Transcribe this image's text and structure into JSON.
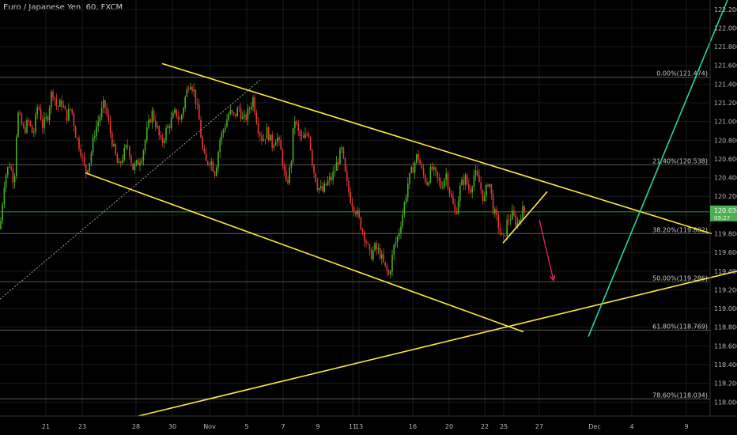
{
  "header": {
    "title": "Euro / Japanese Yen, 60, FXCM"
  },
  "price_badge": {
    "price": "120.034",
    "countdown": "09:27"
  },
  "colors": {
    "background": "#000000",
    "grid": "#1a1a1a",
    "candle_up": "#4caf1e",
    "candle_down": "#e53935",
    "channel": "#ffeb3b",
    "fib_line": "#5a5a5a",
    "current_price": "#4caf50",
    "trendline_teal": "#26d7a8",
    "arrow": "#e0245e",
    "dotted": "#9e9e9e"
  },
  "chart_data": {
    "type": "candlestick",
    "symbol": "EURJPY",
    "timeframe": "60",
    "y_axis": {
      "range": [
        117.85,
        122.3
      ],
      "ticks": [
        "122.200",
        "122.000",
        "121.800",
        "121.600",
        "121.400",
        "121.200",
        "121.000",
        "120.800",
        "120.600",
        "120.400",
        "120.200",
        "120.000",
        "119.800",
        "119.600",
        "119.400",
        "119.200",
        "119.000",
        "118.800",
        "118.600",
        "118.400",
        "118.200",
        "118.000"
      ]
    },
    "x_axis": {
      "range": [
        0,
        932
      ],
      "ticks": [
        {
          "label": "21",
          "x": 58
        },
        {
          "label": "23",
          "x": 104
        },
        {
          "label": "28",
          "x": 172
        },
        {
          "label": "30",
          "x": 218
        },
        {
          "label": "Nov",
          "x": 265
        },
        {
          "label": "5",
          "x": 312
        },
        {
          "label": "7",
          "x": 358
        },
        {
          "label": "9",
          "x": 402
        },
        {
          "label": "11",
          "x": 446
        },
        {
          "label": "13",
          "x": 454
        },
        {
          "label": "16",
          "x": 522
        },
        {
          "label": "20",
          "x": 568
        },
        {
          "label": "22",
          "x": 613
        },
        {
          "label": "25",
          "x": 637
        },
        {
          "label": "27",
          "x": 682
        },
        {
          "label": "Dec",
          "x": 752
        },
        {
          "label": "4",
          "x": 799
        },
        {
          "label": "9",
          "x": 868
        }
      ]
    },
    "fibonacci": [
      {
        "label": "0.00%(121.474)",
        "price": 121.474
      },
      {
        "label": "21.40%(120.538)",
        "price": 120.538
      },
      {
        "label": "38.20%(119.802)",
        "price": 119.802
      },
      {
        "label": "50.00%(119.286)",
        "price": 119.286
      },
      {
        "label": "61.80%(118.769)",
        "price": 118.769
      },
      {
        "label": "78.60%(118.034)",
        "price": 118.034
      }
    ],
    "current_price": 120.034,
    "price_path": [
      [
        0,
        119.85
      ],
      [
        6,
        120.4
      ],
      [
        12,
        120.55
      ],
      [
        18,
        120.35
      ],
      [
        22,
        121.1
      ],
      [
        30,
        120.9
      ],
      [
        36,
        121.0
      ],
      [
        42,
        120.85
      ],
      [
        48,
        121.2
      ],
      [
        54,
        120.95
      ],
      [
        60,
        121.05
      ],
      [
        66,
        121.35
      ],
      [
        72,
        121.15
      ],
      [
        78,
        121.2
      ],
      [
        84,
        121.05
      ],
      [
        90,
        121.15
      ],
      [
        96,
        120.85
      ],
      [
        102,
        120.7
      ],
      [
        108,
        120.45
      ],
      [
        114,
        120.6
      ],
      [
        120,
        120.9
      ],
      [
        126,
        121.05
      ],
      [
        132,
        121.2
      ],
      [
        138,
        120.95
      ],
      [
        144,
        120.7
      ],
      [
        150,
        120.5
      ],
      [
        156,
        120.65
      ],
      [
        162,
        120.75
      ],
      [
        168,
        120.5
      ],
      [
        174,
        120.55
      ],
      [
        180,
        120.65
      ],
      [
        186,
        120.9
      ],
      [
        192,
        121.1
      ],
      [
        198,
        120.95
      ],
      [
        204,
        120.75
      ],
      [
        210,
        120.9
      ],
      [
        216,
        121.0
      ],
      [
        222,
        121.1
      ],
      [
        228,
        121.0
      ],
      [
        234,
        121.25
      ],
      [
        240,
        121.45
      ],
      [
        246,
        121.3
      ],
      [
        252,
        121.0
      ],
      [
        256,
        120.7
      ],
      [
        260,
        120.55
      ],
      [
        266,
        120.6
      ],
      [
        272,
        120.45
      ],
      [
        278,
        120.8
      ],
      [
        284,
        120.95
      ],
      [
        290,
        121.1
      ],
      [
        296,
        121.05
      ],
      [
        302,
        121.15
      ],
      [
        308,
        121.0
      ],
      [
        314,
        121.1
      ],
      [
        320,
        121.25
      ],
      [
        326,
        120.95
      ],
      [
        332,
        120.8
      ],
      [
        338,
        120.9
      ],
      [
        344,
        120.75
      ],
      [
        350,
        120.85
      ],
      [
        356,
        120.65
      ],
      [
        362,
        120.3
      ],
      [
        368,
        120.55
      ],
      [
        372,
        121.05
      ],
      [
        378,
        120.85
      ],
      [
        384,
        120.8
      ],
      [
        390,
        120.9
      ],
      [
        396,
        120.5
      ],
      [
        402,
        120.3
      ],
      [
        408,
        120.25
      ],
      [
        414,
        120.35
      ],
      [
        420,
        120.4
      ],
      [
        426,
        120.55
      ],
      [
        432,
        120.7
      ],
      [
        438,
        120.35
      ],
      [
        444,
        120.15
      ],
      [
        450,
        120.05
      ],
      [
        456,
        119.9
      ],
      [
        462,
        119.75
      ],
      [
        468,
        119.55
      ],
      [
        474,
        119.65
      ],
      [
        480,
        119.6
      ],
      [
        486,
        119.45
      ],
      [
        492,
        119.35
      ],
      [
        498,
        119.65
      ],
      [
        504,
        119.8
      ],
      [
        510,
        120.05
      ],
      [
        516,
        120.35
      ],
      [
        522,
        120.5
      ],
      [
        528,
        120.65
      ],
      [
        534,
        120.45
      ],
      [
        540,
        120.35
      ],
      [
        546,
        120.5
      ],
      [
        552,
        120.4
      ],
      [
        558,
        120.3
      ],
      [
        564,
        120.45
      ],
      [
        570,
        120.2
      ],
      [
        576,
        120.0
      ],
      [
        582,
        120.3
      ],
      [
        588,
        120.4
      ],
      [
        594,
        120.25
      ],
      [
        600,
        120.45
      ],
      [
        606,
        120.35
      ],
      [
        612,
        120.15
      ],
      [
        618,
        120.4
      ],
      [
        624,
        120.05
      ],
      [
        630,
        119.9
      ],
      [
        636,
        119.7
      ],
      [
        642,
        119.95
      ],
      [
        648,
        120.0
      ],
      [
        654,
        119.9
      ],
      [
        660,
        120.05
      ],
      [
        664,
        120.03
      ]
    ],
    "annotations": {
      "channel_upper": [
        [
          205,
          121.62
        ],
        [
          900,
          119.8
        ]
      ],
      "channel_lower": [
        [
          108,
          120.45
        ],
        [
          662,
          118.75
        ]
      ],
      "support_line": [
        [
          175,
          117.85
        ],
        [
          932,
          119.4
        ]
      ],
      "teal_trendline": [
        [
          744,
          118.7
        ],
        [
          920,
          122.3
        ]
      ],
      "dotted_line": [
        [
          0,
          119.1
        ],
        [
          330,
          121.45
        ]
      ],
      "wedge_lower": [
        [
          636,
          119.7
        ],
        [
          692,
          120.25
        ]
      ],
      "forecast_arrow": [
        [
          682,
          119.95
        ],
        [
          700,
          119.3
        ]
      ]
    }
  }
}
